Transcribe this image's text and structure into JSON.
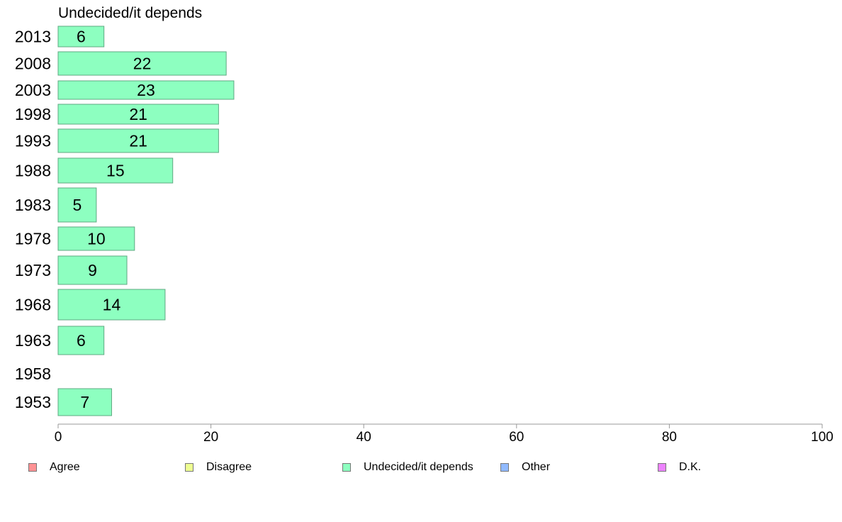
{
  "chart_data": {
    "type": "bar",
    "orientation": "horizontal",
    "title": "Undecided/it depends",
    "categories": [
      "2013",
      "2008",
      "2003",
      "1998",
      "1993",
      "1988",
      "1983",
      "1978",
      "1973",
      "1968",
      "1963",
      "1958",
      "1953"
    ],
    "values": [
      6,
      22,
      23,
      21,
      21,
      15,
      5,
      10,
      9,
      14,
      6,
      null,
      7
    ],
    "value_labels": [
      "6",
      "22",
      "23",
      "21",
      "21",
      "15",
      "5",
      "10",
      "9",
      "14",
      "6",
      "",
      "7"
    ],
    "xlim": [
      0,
      100
    ],
    "xticks": [
      "0",
      "20",
      "40",
      "60",
      "80",
      "100"
    ],
    "bar_color": "#8dffc0",
    "bar_border_color": "#5fa882",
    "grid": false,
    "legend_position": "bottom",
    "legend": [
      {
        "label": "Agree",
        "color": "#ff9294"
      },
      {
        "label": "Disagree",
        "color": "#eeff91"
      },
      {
        "label": "Undecided/it depends",
        "color": "#8dffc0"
      },
      {
        "label": "Other",
        "color": "#90baff"
      },
      {
        "label": "D.K.",
        "color": "#ed83ff"
      }
    ]
  }
}
